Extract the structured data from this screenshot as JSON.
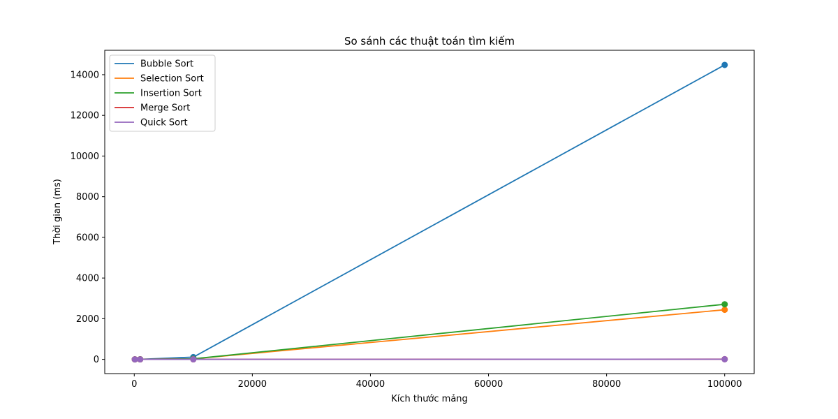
{
  "chart_data": {
    "type": "line",
    "title": "So sánh các thuật toán tìm kiếm",
    "xlabel": "Kích thước mảng",
    "ylabel": "Thời gian (ms)",
    "xlim": [
      -5000,
      105000
    ],
    "ylim": [
      -700,
      15200
    ],
    "xticks": [
      0,
      20000,
      40000,
      60000,
      80000,
      100000
    ],
    "yticks": [
      0,
      2000,
      4000,
      6000,
      8000,
      10000,
      12000,
      14000
    ],
    "grid": false,
    "legend_position": "top-left",
    "x": [
      100,
      1000,
      10000,
      100000
    ],
    "series": [
      {
        "name": " Bubble Sort",
        "color": "#1f77b4",
        "values": [
          0.5,
          5,
          110,
          14480
        ]
      },
      {
        "name": " Selection Sort",
        "color": "#ff7f0e",
        "values": [
          0.2,
          2,
          25,
          2440
        ]
      },
      {
        "name": " Insertion Sort",
        "color": "#2ca02c",
        "values": [
          0.2,
          2,
          27,
          2710
        ]
      },
      {
        "name": " Merge Sort",
        "color": "#d62728",
        "values": [
          0.1,
          0.5,
          3,
          10
        ]
      },
      {
        "name": " Quick Sort",
        "color": "#9467bd",
        "values": [
          0.1,
          0.4,
          2,
          8
        ]
      }
    ]
  }
}
